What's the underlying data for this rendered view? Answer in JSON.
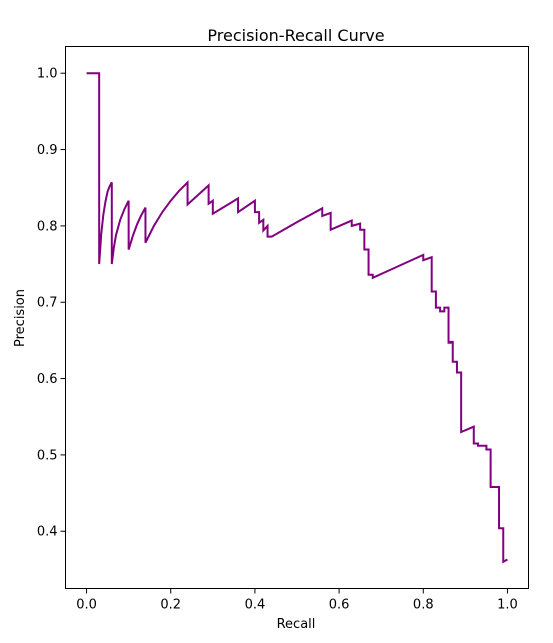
{
  "chart_data": {
    "type": "line",
    "title": "Precision-Recall Curve",
    "xlabel": "Recall",
    "ylabel": "Precision",
    "xlim": [
      -0.05,
      1.05
    ],
    "ylim": [
      0.325,
      1.035
    ],
    "xticks": [
      0.0,
      0.2,
      0.4,
      0.6,
      0.8,
      1.0
    ],
    "xtick_labels": [
      "0.0",
      "0.2",
      "0.4",
      "0.6",
      "0.8",
      "1.0"
    ],
    "yticks": [
      0.4,
      0.5,
      0.6,
      0.7,
      0.8,
      0.9,
      1.0
    ],
    "ytick_labels": [
      "0.4",
      "0.5",
      "0.6",
      "0.7",
      "0.8",
      "0.9",
      "1.0"
    ],
    "grid": false,
    "legend": "none",
    "line_color": "#800080",
    "series": [
      {
        "x": [
          0.0,
          0.03,
          0.03,
          0.035,
          0.04,
          0.045,
          0.05,
          0.055,
          0.06,
          0.06,
          0.065,
          0.07,
          0.08,
          0.09,
          0.1,
          0.1,
          0.11,
          0.12,
          0.13,
          0.14,
          0.14,
          0.16,
          0.18,
          0.2,
          0.22,
          0.24,
          0.24,
          0.29,
          0.29,
          0.3,
          0.3,
          0.36,
          0.36,
          0.4,
          0.4,
          0.41,
          0.41,
          0.42,
          0.42,
          0.43,
          0.43,
          0.44,
          0.44,
          0.5,
          0.56,
          0.56,
          0.58,
          0.58,
          0.63,
          0.63,
          0.65,
          0.65,
          0.66,
          0.66,
          0.67,
          0.67,
          0.68,
          0.68,
          0.8,
          0.8,
          0.82,
          0.82,
          0.83,
          0.83,
          0.84,
          0.84,
          0.85,
          0.85,
          0.86,
          0.86,
          0.865,
          0.865,
          0.87,
          0.87,
          0.88,
          0.88,
          0.89,
          0.89,
          0.92,
          0.92,
          0.93,
          0.93,
          0.94,
          0.94,
          0.95,
          0.95,
          0.96,
          0.96,
          0.97,
          0.97,
          0.98,
          0.98,
          0.99,
          0.99,
          1.0
        ],
        "y": [
          1.0,
          1.0,
          0.75,
          0.79,
          0.815,
          0.832,
          0.845,
          0.852,
          0.857,
          0.75,
          0.772,
          0.788,
          0.808,
          0.822,
          0.833,
          0.769,
          0.787,
          0.802,
          0.814,
          0.824,
          0.778,
          0.8,
          0.818,
          0.833,
          0.846,
          0.857,
          0.828,
          0.853,
          0.829,
          0.833,
          0.816,
          0.836,
          0.818,
          0.833,
          0.818,
          0.818,
          0.804,
          0.808,
          0.794,
          0.8,
          0.786,
          0.786,
          0.786,
          0.805,
          0.823,
          0.813,
          0.817,
          0.795,
          0.807,
          0.8,
          0.803,
          0.795,
          0.795,
          0.769,
          0.769,
          0.736,
          0.736,
          0.732,
          0.762,
          0.755,
          0.759,
          0.714,
          0.714,
          0.693,
          0.693,
          0.688,
          0.688,
          0.693,
          0.693,
          0.647,
          0.647,
          0.648,
          0.648,
          0.622,
          0.622,
          0.608,
          0.608,
          0.53,
          0.537,
          0.515,
          0.515,
          0.512,
          0.512,
          0.512,
          0.512,
          0.507,
          0.507,
          0.458,
          0.458,
          0.458,
          0.458,
          0.404,
          0.404,
          0.36,
          0.363
        ]
      }
    ]
  }
}
